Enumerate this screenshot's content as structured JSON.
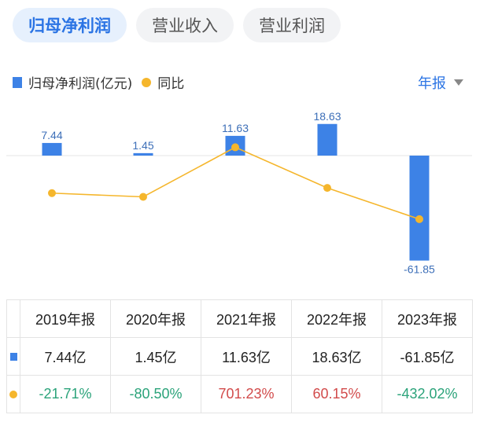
{
  "tabs": [
    {
      "label": "归母净利润",
      "active": true
    },
    {
      "label": "营业收入",
      "active": false
    },
    {
      "label": "营业利润",
      "active": false
    }
  ],
  "legend": {
    "bar_label": "归母净利润(亿元)",
    "line_label": "同比"
  },
  "period_selector": {
    "label": "年报"
  },
  "colors": {
    "bar": "#3d82e6",
    "line": "#f5b62c",
    "accent": "#2b74e4",
    "positive": "#d24b4b",
    "negative": "#2ba37a"
  },
  "chart_data": {
    "type": "bar",
    "categories": [
      "2019年报",
      "2020年报",
      "2021年报",
      "2022年报",
      "2023年报"
    ],
    "series": [
      {
        "name": "归母净利润(亿元)",
        "values": [
          7.44,
          1.45,
          11.63,
          18.63,
          -61.85
        ],
        "labels": [
          "7.44",
          "1.45",
          "11.63",
          "18.63",
          "-61.85"
        ]
      },
      {
        "name": "同比",
        "type": "line",
        "values": [
          -21.71,
          -80.5,
          701.23,
          60.15,
          -432.02
        ]
      }
    ]
  },
  "table": {
    "headers": [
      "2019年报",
      "2020年报",
      "2021年报",
      "2022年报",
      "2023年报"
    ],
    "profit_row": [
      "7.44亿",
      "1.45亿",
      "11.63亿",
      "18.63亿",
      "-61.85亿"
    ],
    "yoy_row": [
      "-21.71%",
      "-80.50%",
      "701.23%",
      "60.15%",
      "-432.02%"
    ]
  }
}
